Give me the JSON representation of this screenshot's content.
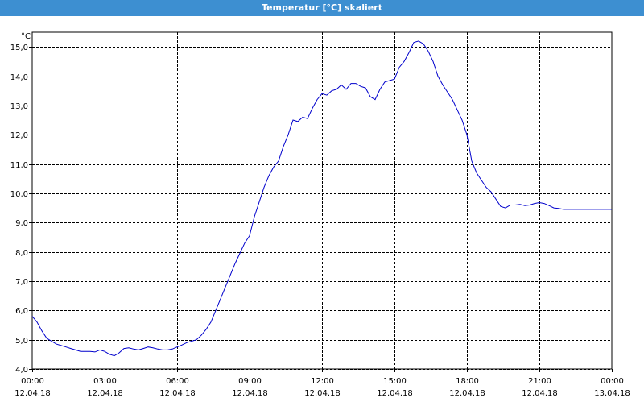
{
  "window": {
    "title": "Temperatur [°C] skaliert"
  },
  "colors": {
    "titlebar": "#3d8fd1",
    "series": "#0000cc",
    "grid": "#000000"
  },
  "chart_data": {
    "type": "line",
    "title": "Temperatur [°C] skaliert",
    "ylabel": "°C",
    "xlabel": "",
    "ylim": [
      4.0,
      15.5
    ],
    "xlim": [
      0,
      24
    ],
    "grid": true,
    "y_ticks": [
      "4,0",
      "5,0",
      "6,0",
      "7,0",
      "8,0",
      "9,0",
      "10,0",
      "11,0",
      "12,0",
      "13,0",
      "14,0",
      "15,0"
    ],
    "y_tick_values": [
      4,
      5,
      6,
      7,
      8,
      9,
      10,
      11,
      12,
      13,
      14,
      15
    ],
    "x_ticks": [
      {
        "time": "00:00",
        "date": "12.04.18",
        "h": 0
      },
      {
        "time": "03:00",
        "date": "12.04.18",
        "h": 3
      },
      {
        "time": "06:00",
        "date": "12.04.18",
        "h": 6
      },
      {
        "time": "09:00",
        "date": "12.04.18",
        "h": 9
      },
      {
        "time": "12:00",
        "date": "12.04.18",
        "h": 12
      },
      {
        "time": "15:00",
        "date": "12.04.18",
        "h": 15
      },
      {
        "time": "18:00",
        "date": "12.04.18",
        "h": 18
      },
      {
        "time": "21:00",
        "date": "12.04.18",
        "h": 21
      },
      {
        "time": "00:00",
        "date": "13.04.18",
        "h": 24
      }
    ],
    "series": [
      {
        "values_x_hours": [
          0,
          0.2,
          0.4,
          0.6,
          0.8,
          1.0,
          1.2,
          1.4,
          1.6,
          1.8,
          2.0,
          2.2,
          2.4,
          2.6,
          2.8,
          3.0,
          3.2,
          3.4,
          3.6,
          3.8,
          4.0,
          4.2,
          4.4,
          4.6,
          4.8,
          5.0,
          5.2,
          5.4,
          5.6,
          5.8,
          6.0,
          6.2,
          6.4,
          6.6,
          6.8,
          7.0,
          7.2,
          7.4,
          7.6,
          7.8,
          8.0,
          8.2,
          8.4,
          8.6,
          8.8,
          9.0,
          9.2,
          9.4,
          9.6,
          9.8,
          10.0,
          10.2,
          10.4,
          10.6,
          10.8,
          11.0,
          11.2,
          11.4,
          11.6,
          11.8,
          12.0,
          12.2,
          12.4,
          12.6,
          12.8,
          13.0,
          13.2,
          13.4,
          13.6,
          13.8,
          14.0,
          14.2,
          14.4,
          14.6,
          14.8,
          15.0,
          15.2,
          15.4,
          15.6,
          15.8,
          16.0,
          16.2,
          16.4,
          16.6,
          16.8,
          17.0,
          17.2,
          17.4,
          17.6,
          17.8,
          18.0,
          18.2,
          18.4,
          18.6,
          18.8,
          19.0,
          19.2,
          19.4,
          19.6,
          19.8,
          20.0,
          20.2,
          20.4,
          20.6,
          20.8,
          21.0,
          21.2,
          21.4,
          21.6,
          21.8,
          22.0,
          22.2,
          22.4,
          22.6,
          22.8,
          23.0,
          23.2,
          23.4,
          23.6,
          23.8,
          24.0
        ],
        "values": [
          5.8,
          5.6,
          5.3,
          5.05,
          4.95,
          4.85,
          4.8,
          4.75,
          4.7,
          4.65,
          4.6,
          4.6,
          4.6,
          4.58,
          4.65,
          4.6,
          4.5,
          4.45,
          4.55,
          4.7,
          4.72,
          4.68,
          4.65,
          4.7,
          4.75,
          4.72,
          4.68,
          4.65,
          4.65,
          4.68,
          4.75,
          4.82,
          4.9,
          4.95,
          5.0,
          5.15,
          5.35,
          5.6,
          6.0,
          6.4,
          6.8,
          7.2,
          7.6,
          7.95,
          8.3,
          8.55,
          9.2,
          9.7,
          10.2,
          10.6,
          10.9,
          11.1,
          11.6,
          12.0,
          12.5,
          12.45,
          12.6,
          12.55,
          12.9,
          13.2,
          13.4,
          13.35,
          13.5,
          13.55,
          13.7,
          13.55,
          13.75,
          13.75,
          13.65,
          13.6,
          13.3,
          13.2,
          13.55,
          13.8,
          13.85,
          13.9,
          14.3,
          14.5,
          14.8,
          15.15,
          15.2,
          15.1,
          14.85,
          14.5,
          14.0,
          13.7,
          13.45,
          13.2,
          12.85,
          12.5,
          12.0,
          11.1,
          10.7,
          10.45,
          10.2,
          10.05,
          9.8,
          9.55,
          9.5,
          9.6,
          9.6,
          9.62,
          9.58,
          9.6,
          9.65,
          9.68,
          9.65,
          9.58,
          9.5,
          9.48,
          9.45,
          9.45,
          9.45,
          9.45,
          9.45,
          9.45,
          9.45,
          9.45,
          9.45,
          9.45,
          9.45
        ]
      }
    ]
  }
}
